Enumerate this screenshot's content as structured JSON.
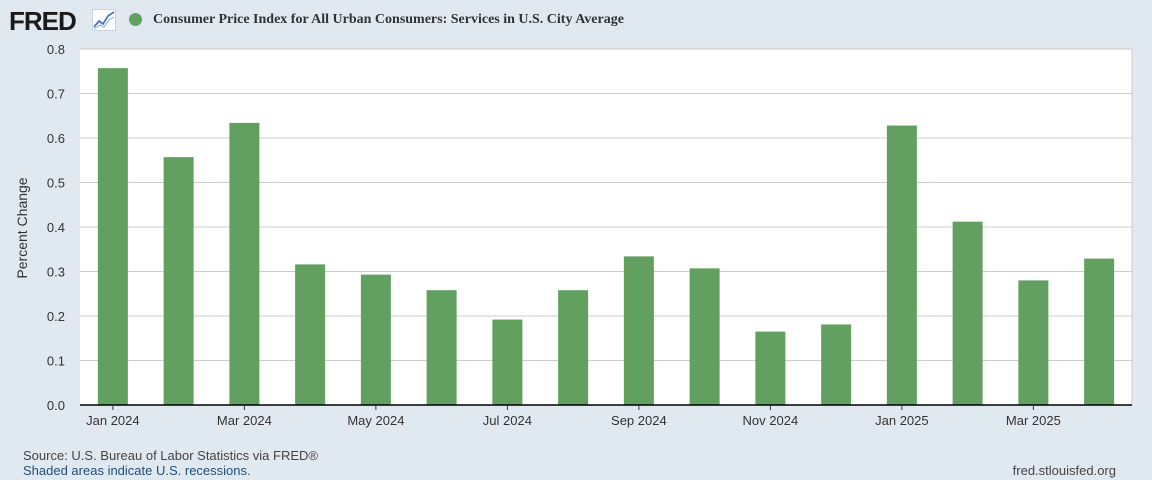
{
  "logo": {
    "text": "FRED"
  },
  "chart_data": {
    "type": "bar",
    "title": "Consumer Price Index for All Urban Consumers: Services in U.S. City Average",
    "ylabel": "Percent Change",
    "xlabel": "",
    "ylim": [
      0,
      0.8
    ],
    "yticks": [
      0.0,
      0.1,
      0.2,
      0.3,
      0.4,
      0.5,
      0.6,
      0.7,
      0.8
    ],
    "ytick_labels": [
      "0.0",
      "0.1",
      "0.2",
      "0.3",
      "0.4",
      "0.5",
      "0.6",
      "0.7",
      "0.8"
    ],
    "categories": [
      "Jan 2024",
      "Feb 2024",
      "Mar 2024",
      "Apr 2024",
      "May 2024",
      "Jun 2024",
      "Jul 2024",
      "Aug 2024",
      "Sep 2024",
      "Oct 2024",
      "Nov 2024",
      "Dec 2024",
      "Jan 2025",
      "Feb 2025",
      "Mar 2025",
      "Apr 2025"
    ],
    "xtick_labels": [
      "Jan 2024",
      "",
      "Mar 2024",
      "",
      "May 2024",
      "",
      "Jul 2024",
      "",
      "Sep 2024",
      "",
      "Nov 2024",
      "",
      "Jan 2025",
      "",
      "Mar 2025",
      ""
    ],
    "values": [
      0.757,
      0.557,
      0.634,
      0.316,
      0.293,
      0.258,
      0.192,
      0.258,
      0.334,
      0.307,
      0.165,
      0.181,
      0.628,
      0.412,
      0.28,
      0.329
    ],
    "series_name": "Consumer Price Index for All Urban Consumers: Services in U.S. City Average",
    "bar_color": "#61a05f",
    "grid": true,
    "legend": "top-left"
  },
  "footer": {
    "source": "Source: U.S. Bureau of Labor Statistics via FRED®",
    "recession_note": "Shaded areas indicate U.S. recessions.",
    "website": "fred.stlouisfed.org"
  }
}
